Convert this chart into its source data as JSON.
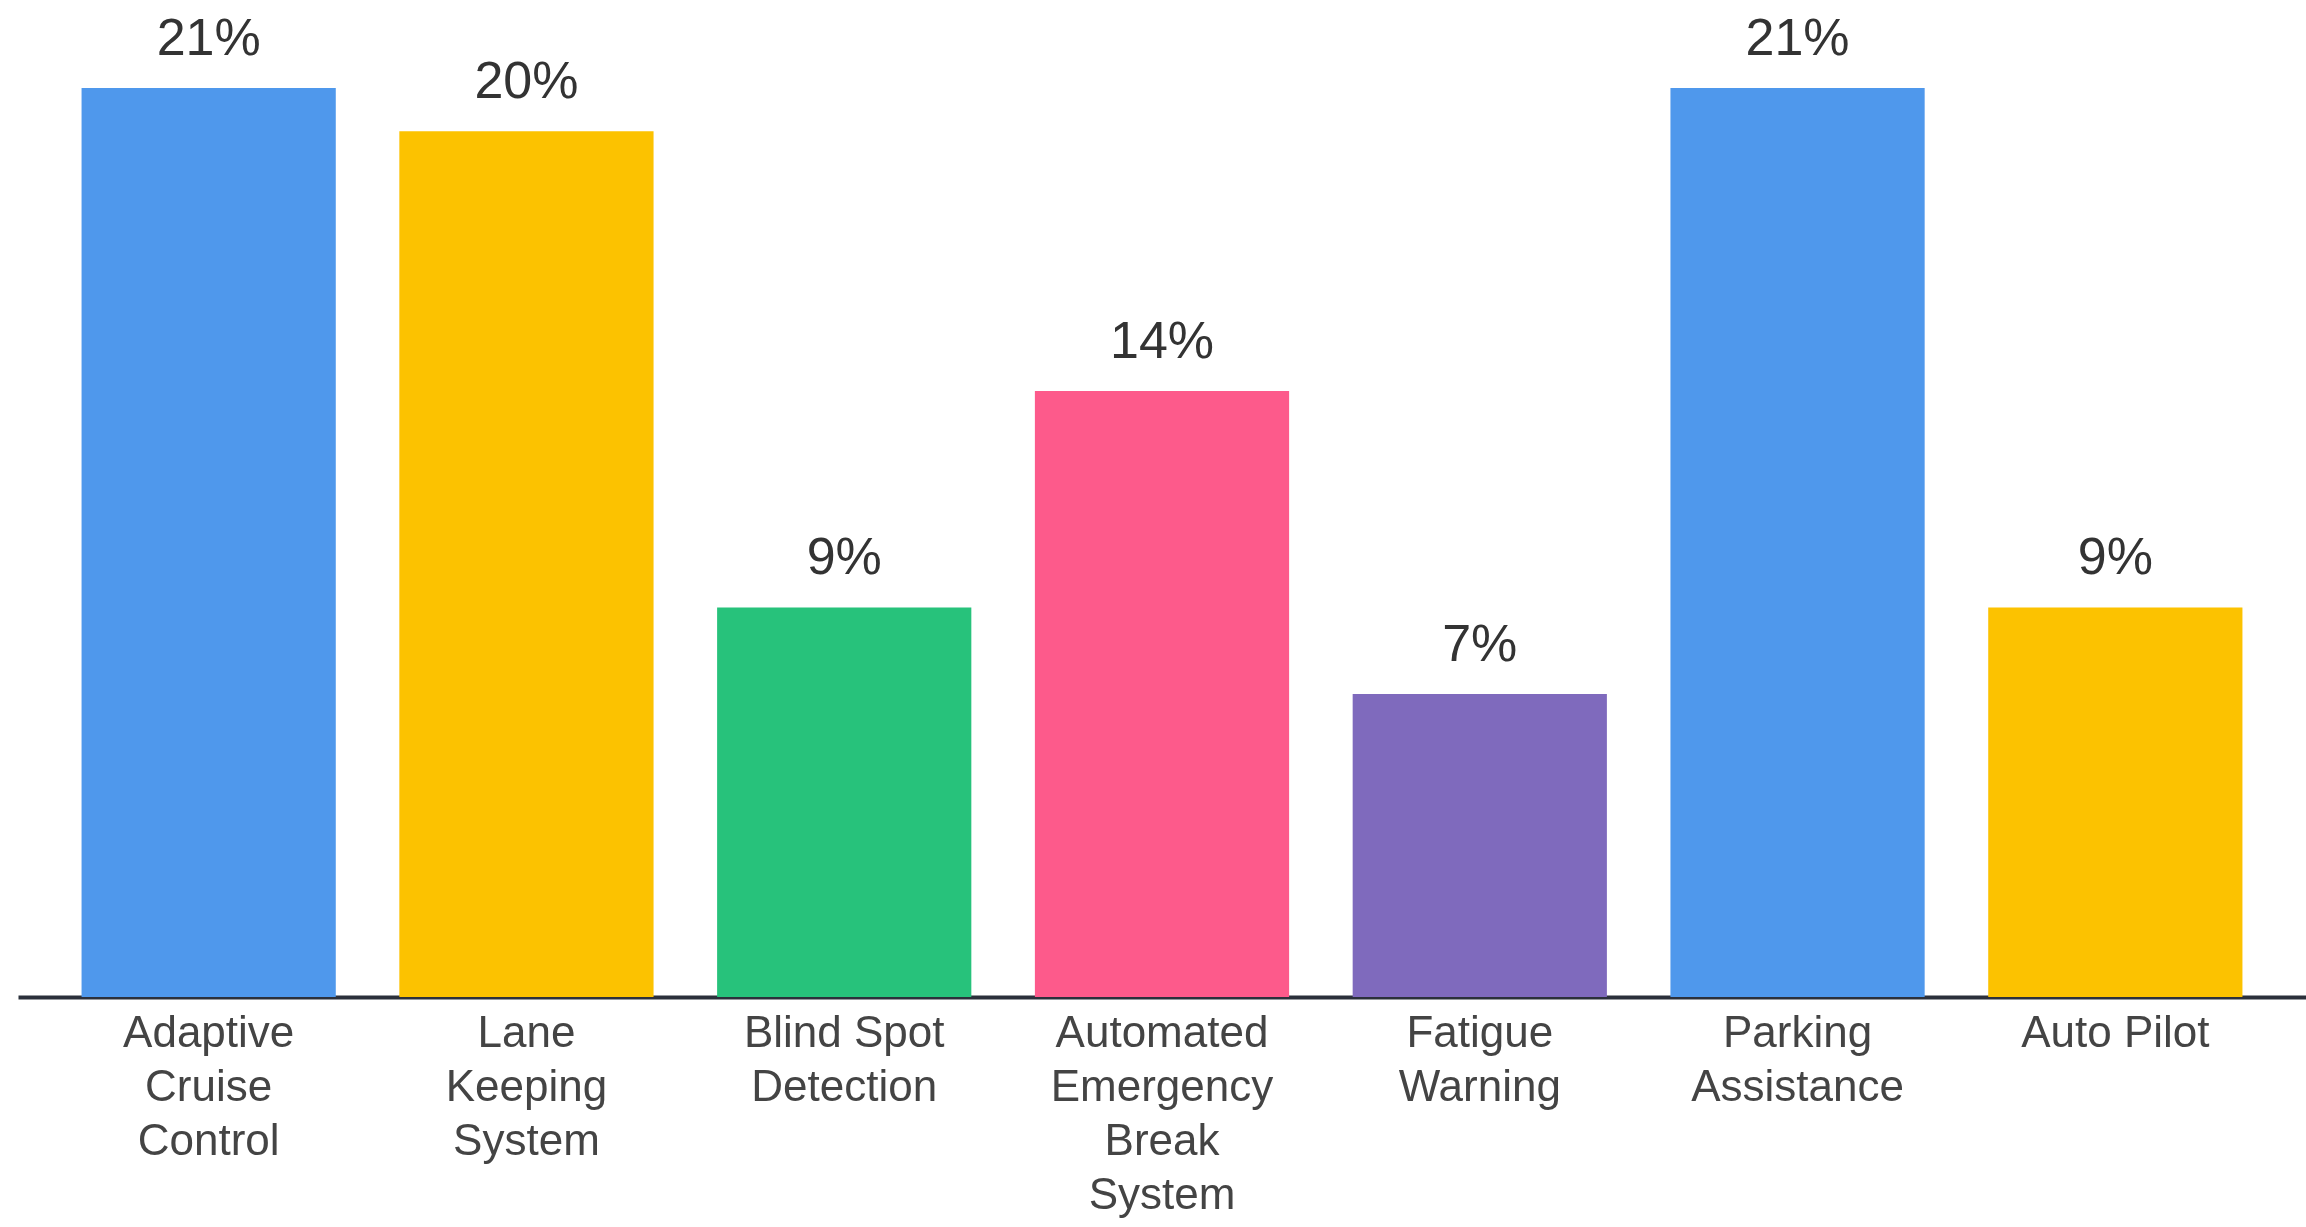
{
  "chart_data": {
    "type": "bar",
    "categories": [
      "Adaptive Cruise Control",
      "Lane Keeping System",
      "Blind Spot Detection",
      "Automated Emergency Break System",
      "Fatigue Warning",
      "Parking Assistance",
      "Auto Pilot"
    ],
    "values": [
      21,
      20,
      9,
      14,
      7,
      21,
      9
    ],
    "colors": [
      "#4f98ec",
      "#fcc200",
      "#27c27b",
      "#fd5a8b",
      "#7f6abd",
      "#4f98ec",
      "#fcc200"
    ],
    "value_labels": [
      "21%",
      "20%",
      "9%",
      "14%",
      "7%",
      "21%",
      "9%"
    ]
  }
}
